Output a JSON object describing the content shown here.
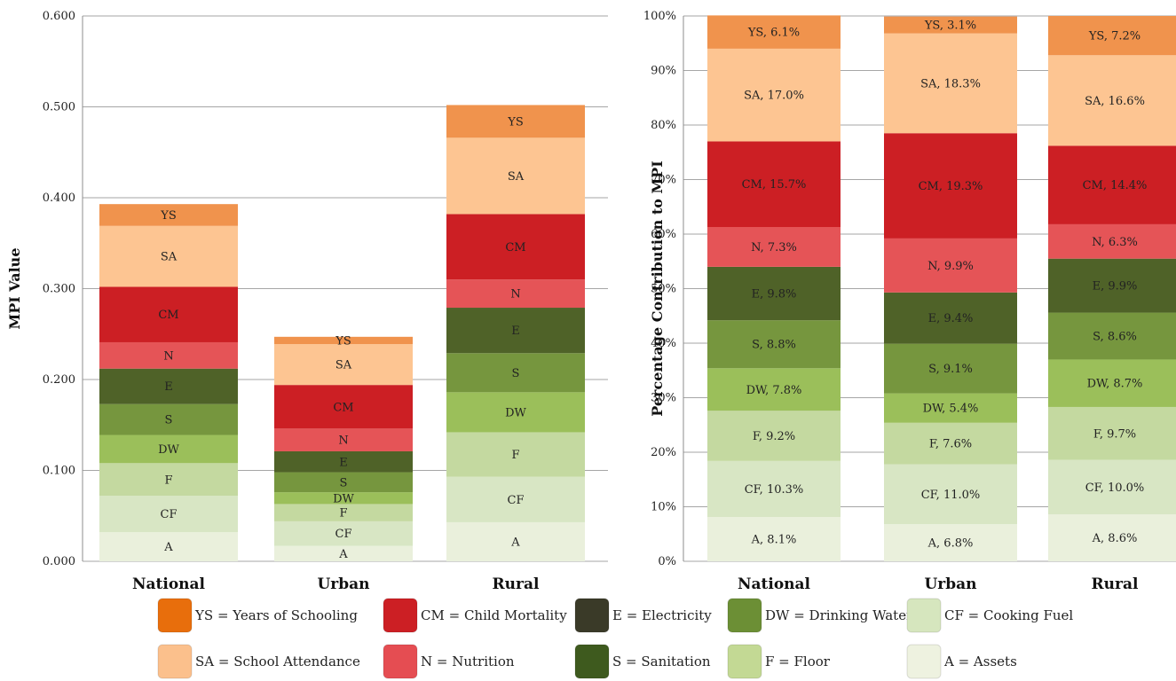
{
  "chart_data": [
    {
      "type": "bar",
      "stacked": true,
      "ylabel": "MPI Value",
      "ylim": [
        0,
        0.6
      ],
      "yticks": [
        "0.000",
        "0.100",
        "0.200",
        "0.300",
        "0.400",
        "0.500",
        "0.600"
      ],
      "grid": true,
      "categories": [
        "National",
        "Urban",
        "Rural"
      ],
      "series": [
        {
          "name": "A",
          "values": [
            0.032,
            0.017,
            0.043
          ]
        },
        {
          "name": "CF",
          "values": [
            0.04,
            0.027,
            0.05
          ]
        },
        {
          "name": "F",
          "values": [
            0.036,
            0.019,
            0.049
          ]
        },
        {
          "name": "DW",
          "values": [
            0.031,
            0.013,
            0.044
          ]
        },
        {
          "name": "S",
          "values": [
            0.034,
            0.022,
            0.043
          ]
        },
        {
          "name": "E",
          "values": [
            0.039,
            0.023,
            0.05
          ]
        },
        {
          "name": "N",
          "values": [
            0.029,
            0.025,
            0.031
          ]
        },
        {
          "name": "CM",
          "values": [
            0.061,
            0.048,
            0.072
          ]
        },
        {
          "name": "SA",
          "values": [
            0.067,
            0.045,
            0.084
          ]
        },
        {
          "name": "YS",
          "values": [
            0.024,
            0.008,
            0.036
          ]
        }
      ]
    },
    {
      "type": "bar",
      "stacked": true,
      "ylabel": "Percentage Contribution to MPI",
      "ylim": [
        0,
        100
      ],
      "yticks": [
        "0%",
        "10%",
        "20%",
        "30%",
        "40%",
        "50%",
        "60%",
        "70%",
        "80%",
        "90%",
        "100%"
      ],
      "grid": true,
      "categories": [
        "National",
        "Urban",
        "Rural"
      ],
      "series": [
        {
          "name": "A",
          "values": [
            8.1,
            6.8,
            8.6
          ],
          "labels": [
            "A, 8.1%",
            "A, 6.8%",
            "A, 8.6%"
          ]
        },
        {
          "name": "CF",
          "values": [
            10.3,
            11.0,
            10.0
          ],
          "labels": [
            "CF, 10.3%",
            "CF, 11.0%",
            "CF, 10.0%"
          ]
        },
        {
          "name": "F",
          "values": [
            9.2,
            7.6,
            9.7
          ],
          "labels": [
            "F, 9.2%",
            "F, 7.6%",
            "F, 9.7%"
          ]
        },
        {
          "name": "DW",
          "values": [
            7.8,
            5.4,
            8.7
          ],
          "labels": [
            "DW, 7.8%",
            "DW, 5.4%",
            "DW, 8.7%"
          ]
        },
        {
          "name": "S",
          "values": [
            8.8,
            9.1,
            8.6
          ],
          "labels": [
            "S, 8.8%",
            "S, 9.1%",
            "S, 8.6%"
          ]
        },
        {
          "name": "E",
          "values": [
            9.8,
            9.4,
            9.9
          ],
          "labels": [
            "E, 9.8%",
            "E, 9.4%",
            "E, 9.9%"
          ]
        },
        {
          "name": "N",
          "values": [
            7.3,
            9.9,
            6.3
          ],
          "labels": [
            "N, 7.3%",
            "N, 9.9%",
            "N, 6.3%"
          ]
        },
        {
          "name": "CM",
          "values": [
            15.7,
            19.3,
            14.4
          ],
          "labels": [
            "CM, 15.7%",
            "CM, 19.3%",
            "CM, 14.4%"
          ]
        },
        {
          "name": "SA",
          "values": [
            17.0,
            18.3,
            16.6
          ],
          "labels": [
            "SA, 17.0%",
            "SA, 18.3%",
            "SA, 16.6%"
          ]
        },
        {
          "name": "YS",
          "values": [
            6.1,
            3.1,
            7.2
          ],
          "labels": [
            "YS, 6.1%",
            "YS, 3.1%",
            "YS, 7.2%"
          ]
        }
      ]
    }
  ],
  "series_colors": {
    "A": "#eaf0dc",
    "CF": "#d8e6c4",
    "F": "#c4d9a0",
    "DW": "#9bbf5a",
    "S": "#76963e",
    "E": "#4f6228",
    "N": "#e55457",
    "CM": "#cc1f24",
    "SA": "#fdc592",
    "YS": "#f0934d"
  },
  "legend": [
    {
      "label": "YS = Years of Schooling",
      "color": "#e86e0c"
    },
    {
      "label": "CM = Child Mortality",
      "color": "#cc1f24"
    },
    {
      "label": "E = Electricity",
      "color": "#3a3a28"
    },
    {
      "label": "DW = Drinking Water",
      "color": "#6c8f35"
    },
    {
      "label": "CF = Cooking Fuel",
      "color": "#d6e6be"
    },
    {
      "label": "SA = School Attendance",
      "color": "#fbc08c"
    },
    {
      "label": "N = Nutrition",
      "color": "#e54d52"
    },
    {
      "label": "S = Sanitation",
      "color": "#3e5a1e"
    },
    {
      "label": "F = Floor",
      "color": "#c3d994"
    },
    {
      "label": "A = Assets",
      "color": "#eef2e0"
    }
  ]
}
